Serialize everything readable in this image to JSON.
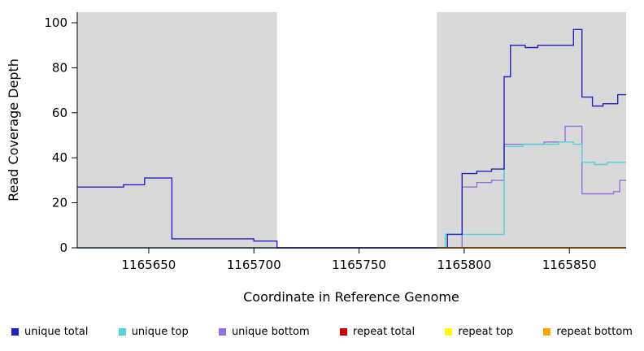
{
  "chart_data": {
    "type": "line",
    "title": "",
    "xlabel": "Coordinate in Reference Genome",
    "ylabel": "Read Coverage Depth",
    "xlim": [
      1165616,
      1165877
    ],
    "ylim": [
      0,
      100
    ],
    "x_ticks": [
      1165650,
      1165700,
      1165750,
      1165800,
      1165850
    ],
    "y_ticks": [
      0,
      20,
      40,
      60,
      80,
      100
    ],
    "grid": false,
    "shaded_regions": [
      {
        "x0": 1165616,
        "x1": 1165711,
        "color": "#d9d9d9"
      },
      {
        "x0": 1165787,
        "x1": 1165877,
        "color": "#d9d9d9"
      }
    ],
    "series": [
      {
        "name": "repeat top",
        "color": "#FFFF00",
        "points": [
          [
            1165616,
            0
          ]
        ]
      },
      {
        "name": "repeat total",
        "color": "#CC0000",
        "points": [
          [
            1165616,
            0
          ]
        ]
      },
      {
        "name": "unique bottom",
        "color": "#9370DB",
        "points": [
          [
            1165616,
            0
          ],
          [
            1165799,
            27
          ],
          [
            1165806,
            29
          ],
          [
            1165813,
            30
          ],
          [
            1165819,
            46
          ],
          [
            1165838,
            47
          ],
          [
            1165848,
            54
          ],
          [
            1165856,
            24
          ],
          [
            1165871,
            25
          ],
          [
            1165874,
            30
          ]
        ]
      },
      {
        "name": "unique top",
        "color": "#4FD6D6",
        "points": [
          [
            1165616,
            0
          ],
          [
            1165791,
            6
          ],
          [
            1165819,
            45
          ],
          [
            1165828,
            46
          ],
          [
            1165845,
            47
          ],
          [
            1165852,
            46
          ],
          [
            1165856,
            38
          ],
          [
            1165862,
            37
          ],
          [
            1165868,
            38
          ]
        ]
      },
      {
        "name": "unique total",
        "color": "#2121CC",
        "points": [
          [
            1165616,
            27
          ],
          [
            1165638,
            28
          ],
          [
            1165648,
            31
          ],
          [
            1165661,
            4
          ],
          [
            1165700,
            3
          ],
          [
            1165711,
            0
          ],
          [
            1165792,
            6
          ],
          [
            1165799,
            33
          ],
          [
            1165806,
            34
          ],
          [
            1165813,
            35
          ],
          [
            1165819,
            76
          ],
          [
            1165822,
            90
          ],
          [
            1165829,
            89
          ],
          [
            1165835,
            90
          ],
          [
            1165852,
            97
          ],
          [
            1165856,
            67
          ],
          [
            1165861,
            63
          ],
          [
            1165866,
            64
          ],
          [
            1165873,
            68
          ]
        ]
      },
      {
        "name": "repeat bottom",
        "color": "#FFA500",
        "points": [
          [
            1165787,
            0
          ]
        ]
      }
    ],
    "legend_position": "bottom"
  },
  "legend": {
    "items": [
      {
        "label": "unique total",
        "color": "#2121CC"
      },
      {
        "label": "unique top",
        "color": "#4FD6D6"
      },
      {
        "label": "unique bottom",
        "color": "#9370DB"
      },
      {
        "label": "repeat total",
        "color": "#CC0000"
      },
      {
        "label": "repeat top",
        "color": "#FFFF00"
      },
      {
        "label": "repeat bottom",
        "color": "#FFA500"
      }
    ]
  }
}
